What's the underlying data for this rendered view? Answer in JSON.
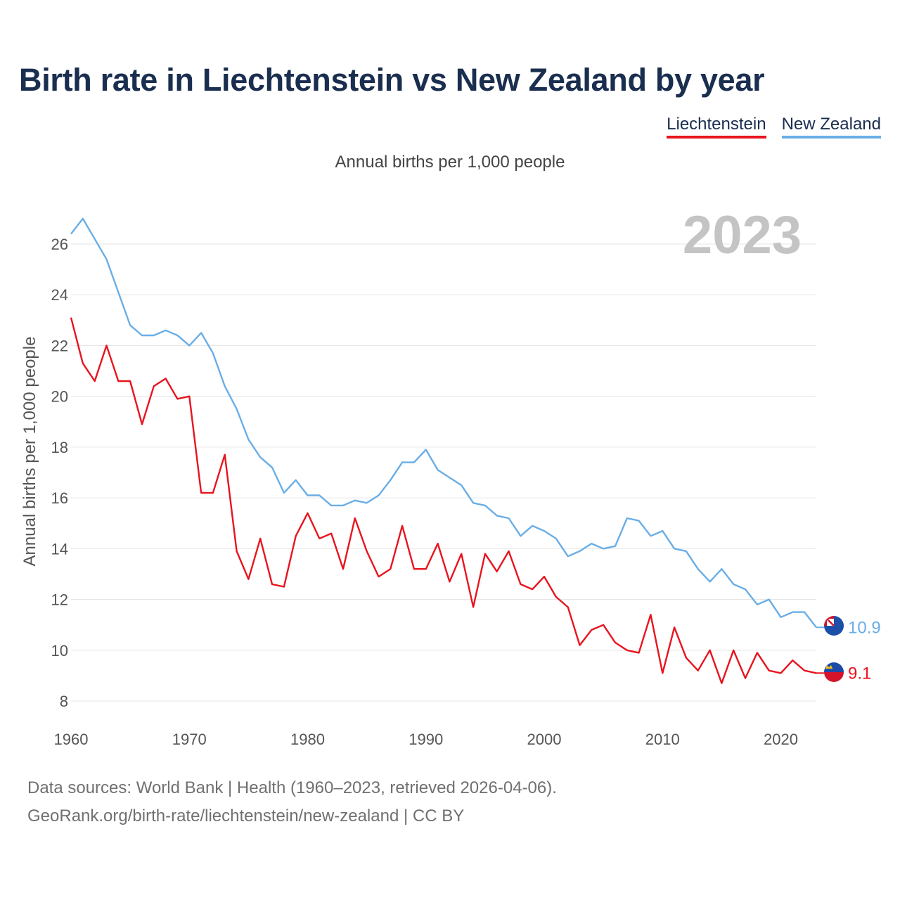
{
  "title": "Birth rate in Liechtenstein vs New Zealand by year",
  "subtitle": "Annual births per 1,000 people",
  "legend": [
    {
      "label": "Liechtenstein",
      "color": "#e8141e"
    },
    {
      "label": "New Zealand",
      "color": "#6aaee6"
    }
  ],
  "year_watermark": "2023",
  "source": {
    "line1": "Data sources: World Bank | Health (1960–2023, retrieved 2026-04-06).",
    "line2": "GeoRank.org/birth-rate/liechtenstein/new-zealand | CC BY"
  },
  "chart_data": {
    "type": "line",
    "title": "Birth rate in Liechtenstein vs New Zealand by year",
    "ylabel": "Annual births per 1,000 people",
    "xlabel": "",
    "xlim": [
      1960,
      2023
    ],
    "ylim": [
      7.5,
      27
    ],
    "xticks": [
      1960,
      1970,
      1980,
      1990,
      2000,
      2010,
      2020
    ],
    "yticks": [
      8,
      10,
      12,
      14,
      16,
      18,
      20,
      22,
      24,
      26
    ],
    "grid": true,
    "x_start": 1960,
    "series": [
      {
        "name": "Liechtenstein",
        "color": "#e8141e",
        "end_label": "9.1",
        "values": [
          23.1,
          21.3,
          20.6,
          22.0,
          20.6,
          20.6,
          18.9,
          20.4,
          20.7,
          19.9,
          20.0,
          16.2,
          16.2,
          17.7,
          13.9,
          12.8,
          14.4,
          12.6,
          12.5,
          14.5,
          15.4,
          14.4,
          14.6,
          13.2,
          15.2,
          13.9,
          12.9,
          13.2,
          14.9,
          13.2,
          13.2,
          14.2,
          12.7,
          13.8,
          11.7,
          13.8,
          13.1,
          13.9,
          12.6,
          12.4,
          12.9,
          12.1,
          11.7,
          10.2,
          10.8,
          11.0,
          10.3,
          10.0,
          9.9,
          11.4,
          9.1,
          10.9,
          9.7,
          9.2,
          10.0,
          8.7,
          10.0,
          8.9,
          9.9,
          9.2,
          9.1,
          9.6,
          9.2,
          9.1
        ]
      },
      {
        "name": "New Zealand",
        "color": "#6aaee6",
        "end_label": "10.9",
        "values": [
          26.4,
          27.0,
          26.2,
          25.4,
          24.1,
          22.8,
          22.4,
          22.4,
          22.6,
          22.4,
          22.0,
          22.5,
          21.7,
          20.4,
          19.5,
          18.3,
          17.6,
          17.2,
          16.2,
          16.7,
          16.1,
          16.1,
          15.7,
          15.7,
          15.9,
          15.8,
          16.1,
          16.7,
          17.4,
          17.4,
          17.9,
          17.1,
          16.8,
          16.5,
          15.8,
          15.7,
          15.3,
          15.2,
          14.5,
          14.9,
          14.7,
          14.4,
          13.7,
          13.9,
          14.2,
          14.0,
          14.1,
          15.2,
          15.1,
          14.5,
          14.7,
          14.0,
          13.9,
          13.2,
          12.7,
          13.2,
          12.6,
          12.4,
          11.8,
          12.0,
          11.3,
          11.5,
          11.5,
          10.9
        ]
      }
    ]
  }
}
